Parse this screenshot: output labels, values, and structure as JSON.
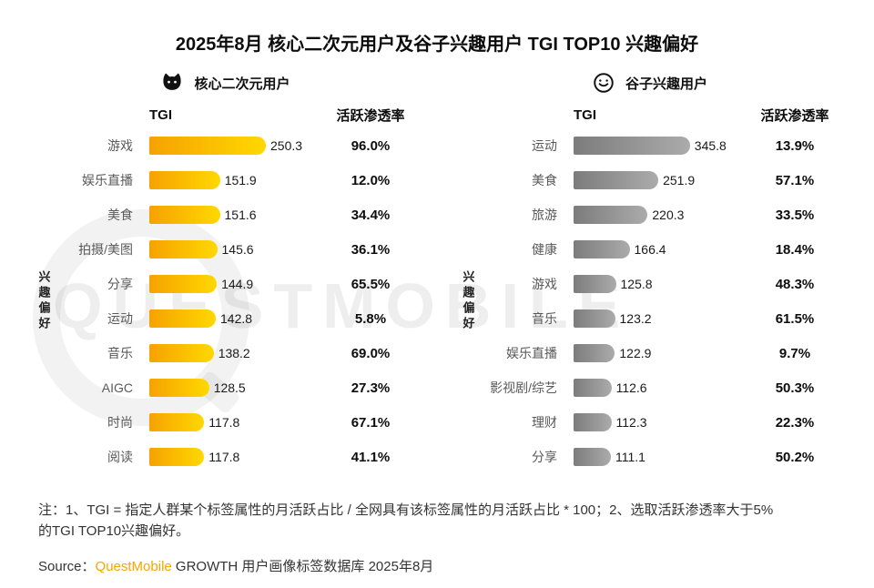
{
  "title": "2025年8月 核心二次元用户及谷子兴趣用户 TGI TOP10 兴趣偏好",
  "watermark": "QUESTMOBILE",
  "colors": {
    "gold_bar_start": "#F6A200",
    "gold_bar_end": "#FFD800",
    "gray_bar_start": "#7C7C7C",
    "gray_bar_end": "#ABABAB",
    "brand_orange": "#F7A600"
  },
  "chart_data": [
    {
      "type": "bar",
      "orientation": "horizontal",
      "title": "核心二次元用户",
      "icon": "cat-icon",
      "col_tgi": "TGI",
      "col_penetration": "活跃渗透率",
      "axis_label": "兴趣偏好",
      "xmax": 260,
      "bar_colors": [
        "#F6A200",
        "#FFD800"
      ],
      "categories": [
        "游戏",
        "娱乐直播",
        "美食",
        "拍摄/美图",
        "分享",
        "运动",
        "音乐",
        "AIGC",
        "时尚",
        "阅读"
      ],
      "tgi": [
        250.3,
        151.9,
        151.6,
        145.6,
        144.9,
        142.8,
        138.2,
        128.5,
        117.8,
        117.8
      ],
      "penetration": [
        "96.0%",
        "12.0%",
        "34.4%",
        "36.1%",
        "65.5%",
        "5.8%",
        "69.0%",
        "27.3%",
        "67.1%",
        "41.1%"
      ]
    },
    {
      "type": "bar",
      "orientation": "horizontal",
      "title": "谷子兴趣用户",
      "icon": "badge-icon",
      "col_tgi": "TGI",
      "col_penetration": "活跃渗透率",
      "axis_label": "兴趣偏好",
      "xmax": 360,
      "bar_colors": [
        "#7C7C7C",
        "#ABABAB"
      ],
      "categories": [
        "运动",
        "美食",
        "旅游",
        "健康",
        "游戏",
        "音乐",
        "娱乐直播",
        "影视剧/综艺",
        "理财",
        "分享"
      ],
      "tgi": [
        345.8,
        251.9,
        220.3,
        166.4,
        125.8,
        123.2,
        122.9,
        112.6,
        112.3,
        111.1
      ],
      "penetration": [
        "13.9%",
        "57.1%",
        "33.5%",
        "18.4%",
        "48.3%",
        "61.5%",
        "9.7%",
        "50.3%",
        "22.3%",
        "50.2%"
      ]
    }
  ],
  "notes": {
    "line1": "注：1、TGI = 指定人群某个标签属性的月活跃占比 / 全网具有该标签属性的月活跃占比 * 100；2、选取活跃渗透率大于5%",
    "line2": "的TGI TOP10兴趣偏好。"
  },
  "source": {
    "prefix": "Source：",
    "brand": "QuestMobile",
    "suffix": " GROWTH 用户画像标签数据库 2025年8月"
  }
}
